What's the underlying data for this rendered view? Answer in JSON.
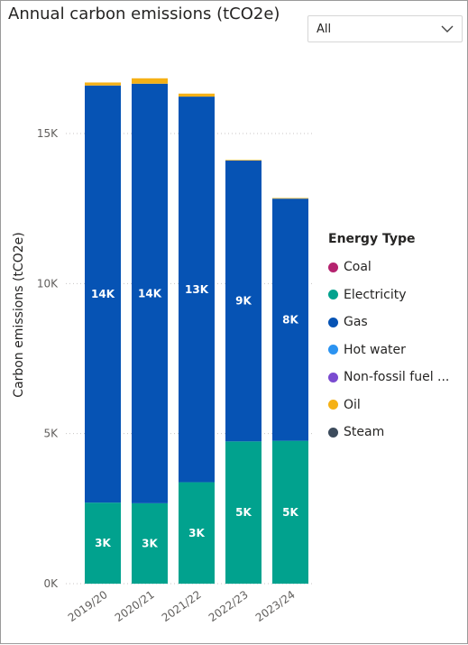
{
  "title": "Annual carbon emissions (tCO2e)",
  "slicer": {
    "value": "All",
    "icon": "chevron-down-icon"
  },
  "chart_data": {
    "type": "bar",
    "stacked": true,
    "categories": [
      "2019/20",
      "2020/21",
      "2021/22",
      "2022/23",
      "2023/24"
    ],
    "ylabel": "Carbon emissions (tCO2e)",
    "ylim": [
      0,
      17000
    ],
    "yticks": [
      0,
      5000,
      10000,
      15000
    ],
    "ytick_labels": [
      "0K",
      "5K",
      "10K",
      "15K"
    ],
    "legend_title": "Energy Type",
    "legend_position": "right",
    "series": [
      {
        "name": "Coal",
        "color": "#B5236F",
        "values": [
          0,
          0,
          0,
          0,
          0
        ]
      },
      {
        "name": "Electricity",
        "color": "#01A28E",
        "values": [
          2700,
          2680,
          3380,
          4740,
          4760
        ],
        "labels": [
          "3K",
          "3K",
          "3K",
          "5K",
          "5K"
        ]
      },
      {
        "name": "Gas",
        "color": "#0653B4",
        "values": [
          13900,
          13980,
          12850,
          9360,
          8070
        ],
        "labels": [
          "14K",
          "14K",
          "13K",
          "9K",
          "8K"
        ]
      },
      {
        "name": "Hot water",
        "color": "#2B93F1",
        "values": [
          0,
          0,
          0,
          0,
          0
        ]
      },
      {
        "name": "Non-fossil fuel ...",
        "color": "#7A4BD0",
        "values": [
          0,
          0,
          0,
          0,
          0
        ]
      },
      {
        "name": "Oil",
        "color": "#F5B116",
        "values": [
          100,
          180,
          100,
          20,
          20
        ]
      },
      {
        "name": "Steam",
        "color": "#3C4B5C",
        "values": [
          0,
          0,
          0,
          0,
          0
        ]
      }
    ]
  }
}
